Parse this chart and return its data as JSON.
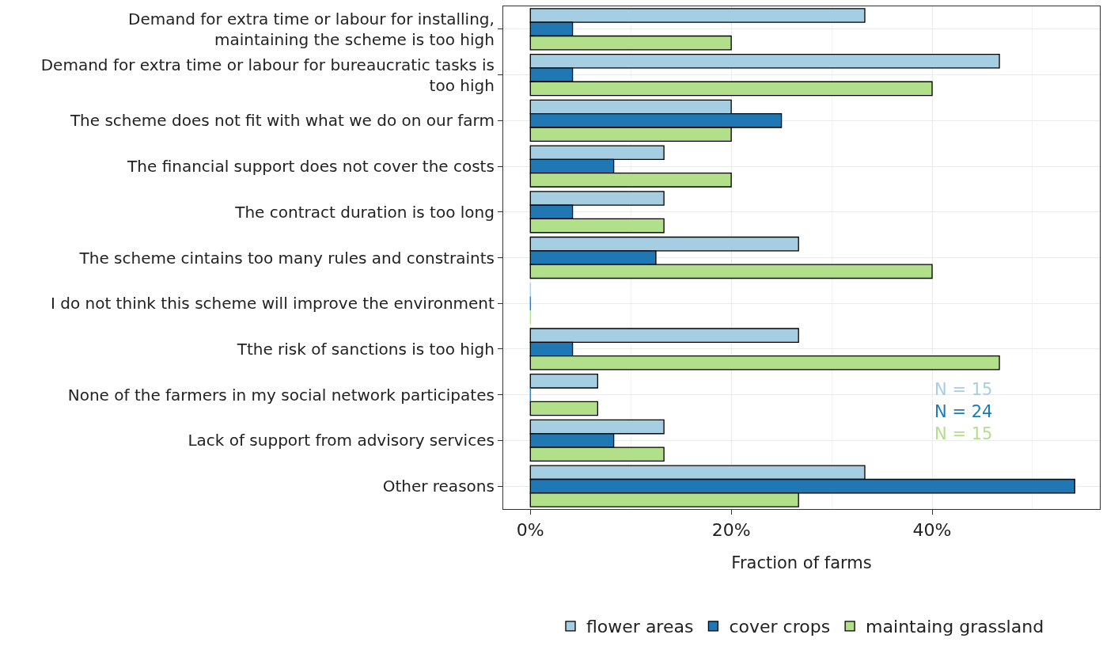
{
  "chart_data": {
    "type": "bar",
    "orientation": "horizontal",
    "xlabel": "Fraction of farms",
    "categories": [
      "Demand for extra time or labour for installing, maintaining the scheme is too high",
      "Demand for extra time or labour for bureaucratic tasks is too high",
      "The scheme does not fit with what we do on our farm",
      "The financial support does not cover the costs",
      "The contract duration is too long",
      "The scheme cintains too many rules and constraints",
      "I do not think this scheme will improve the environment",
      "Tthe risk of sanctions is too high",
      "None of the farmers in my social network participates",
      "Lack of support from advisory services",
      "Other reasons"
    ],
    "series": [
      {
        "name": "flower areas",
        "color": "#a6cee3",
        "values": [
          33.3,
          46.7,
          20,
          13.3,
          13.3,
          26.7,
          0,
          26.7,
          6.7,
          13.3,
          33.3
        ]
      },
      {
        "name": "cover crops",
        "color": "#1f78b4",
        "values": [
          4.2,
          4.2,
          25,
          8.3,
          4.2,
          12.5,
          0,
          4.2,
          0,
          8.3,
          54.2
        ]
      },
      {
        "name": "maintaing grassland",
        "color": "#b2df8a",
        "values": [
          20,
          40,
          20,
          20,
          13.3,
          40,
          0,
          46.7,
          6.7,
          13.3,
          26.7
        ]
      }
    ],
    "xlim": [
      -2.7,
      56.7
    ],
    "xticks": [
      {
        "value": 0,
        "label": "0%"
      },
      {
        "value": 20,
        "label": "20%"
      },
      {
        "value": 40,
        "label": "40%"
      }
    ],
    "grid": true,
    "legend": "bottom",
    "annotations": [
      "N = 15",
      "N = 24",
      "N = 15"
    ]
  }
}
